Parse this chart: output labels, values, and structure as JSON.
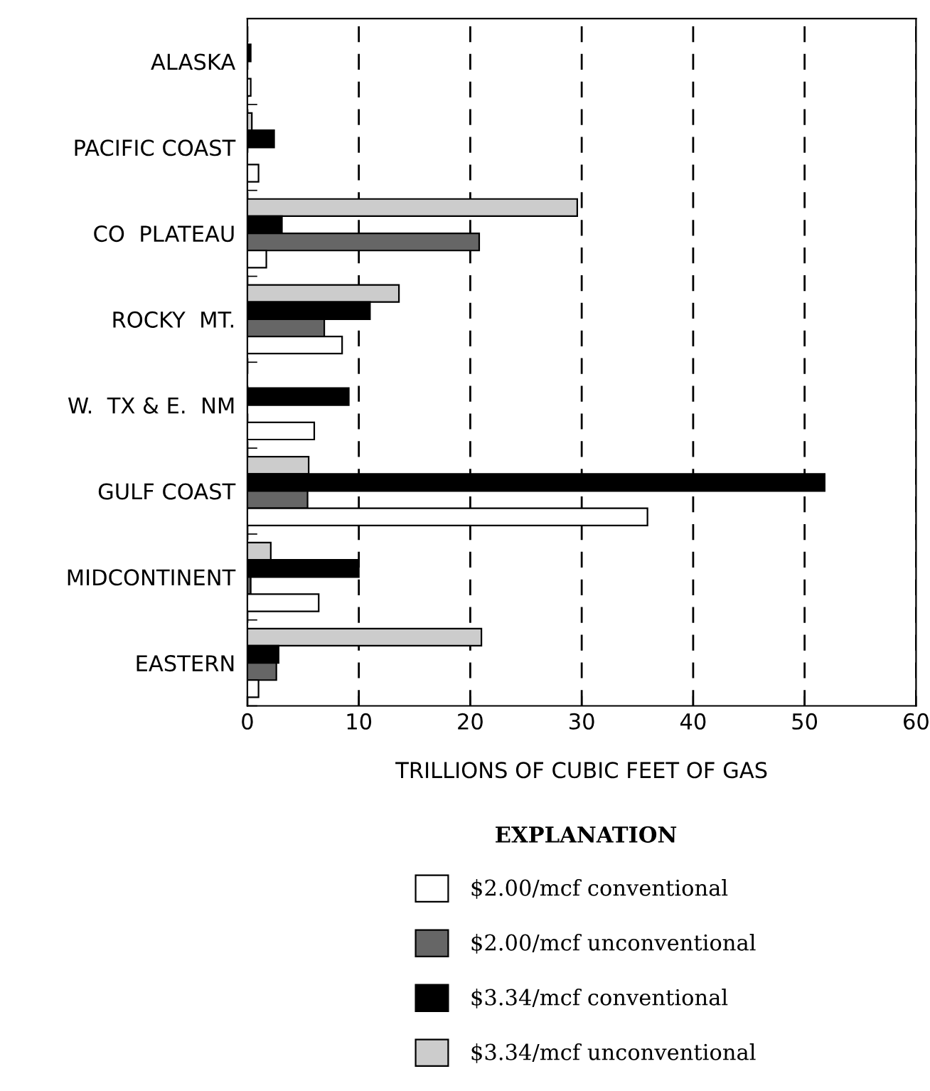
{
  "chart_data": {
    "type": "bar",
    "orientation": "horizontal",
    "xlabel": "TRILLIONS OF CUBIC FEET OF GAS",
    "legend_title": "EXPLANATION",
    "categories": [
      "ALASKA",
      "PACIFIC COAST",
      "CO  PLATEAU",
      "ROCKY  MT.",
      "W.  TX & E.  NM",
      "GULF COAST",
      "MIDCONTINENT",
      "EASTERN"
    ],
    "series": [
      {
        "name": "$3.34/mcf unconventional",
        "color": "#cccccc",
        "values": [
          null,
          0.4,
          29.6,
          13.6,
          null,
          5.5,
          2.1,
          21.0
        ]
      },
      {
        "name": "$3.34/mcf conventional",
        "color": "#000000",
        "values": [
          0.3,
          2.4,
          3.1,
          11.0,
          9.1,
          51.8,
          10.0,
          2.8
        ]
      },
      {
        "name": "$2.00/mcf unconventional",
        "color": "#666666",
        "values": [
          null,
          null,
          20.8,
          6.9,
          null,
          5.4,
          0.3,
          2.6
        ]
      },
      {
        "name": "$2.00/mcf conventional",
        "color": "#ffffff",
        "values": [
          0.3,
          1.0,
          1.7,
          8.5,
          6.0,
          35.9,
          6.4,
          1.0
        ]
      }
    ],
    "xlim": [
      0,
      60
    ],
    "xticks": [
      0,
      10,
      20,
      30,
      40,
      50,
      60
    ],
    "grid": "x",
    "line_style": "dashed",
    "legend": "bottom"
  }
}
